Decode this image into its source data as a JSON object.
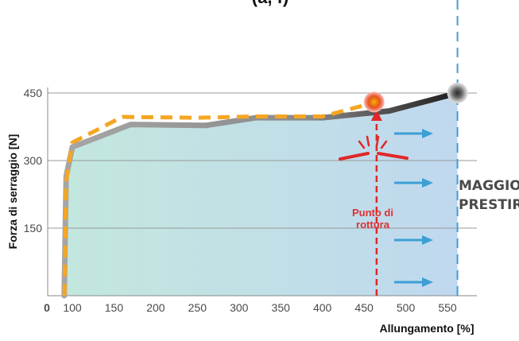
{
  "chart_data": {
    "type": "line",
    "title_fragment": "(a, f)",
    "xlabel": "Allungamento [%]",
    "ylabel": "Forza di serraggio [N]",
    "xlim": [
      0,
      570
    ],
    "ylim": [
      0,
      455
    ],
    "x_ticks": [
      0,
      100,
      150,
      200,
      250,
      300,
      350,
      400,
      450,
      500,
      550
    ],
    "x_tick_labels": [
      "0",
      "100",
      "150",
      "200",
      "250",
      "300",
      "350",
      "400",
      "450",
      "500",
      "550"
    ],
    "y_ticks": [
      150,
      300,
      450
    ],
    "y_tick_labels": [
      "150",
      "300",
      "450"
    ],
    "grid": true,
    "series": [
      {
        "name": "",
        "style": "solid",
        "color_from": "#a8a8a8",
        "color_to": "#222222",
        "x": [
          67,
          75,
          100,
          170,
          260,
          320,
          400,
          480,
          562
        ],
        "y": [
          0,
          265,
          330,
          380,
          378,
          395,
          395,
          410,
          450
        ]
      },
      {
        "name": "",
        "style": "dashed",
        "color": "#f5a623",
        "x": [
          68,
          75,
          100,
          160,
          250,
          320,
          400,
          455,
          462
        ],
        "y": [
          0,
          255,
          340,
          397,
          395,
          398,
          398,
          425,
          430
        ]
      }
    ],
    "markers": {
      "end_point": {
        "x": 562,
        "y": 450,
        "color": "#555555"
      },
      "break_point": {
        "x": 462,
        "y": 430,
        "color": "#e8531e"
      }
    },
    "break_line_x": 465,
    "limit_line_x": 562,
    "annotations": {
      "break_label_line1": "Punto di",
      "break_label_line2": "rottura",
      "callout_line1": "MAGGIORE",
      "callout_line2": "PRESTIRO"
    },
    "colors": {
      "fill_left": "#bfe6dc",
      "fill_right": "#bcd6ee",
      "arrow": "#3c9fd4",
      "limit_line": "#3c9fd4",
      "break": "#e02828"
    }
  }
}
